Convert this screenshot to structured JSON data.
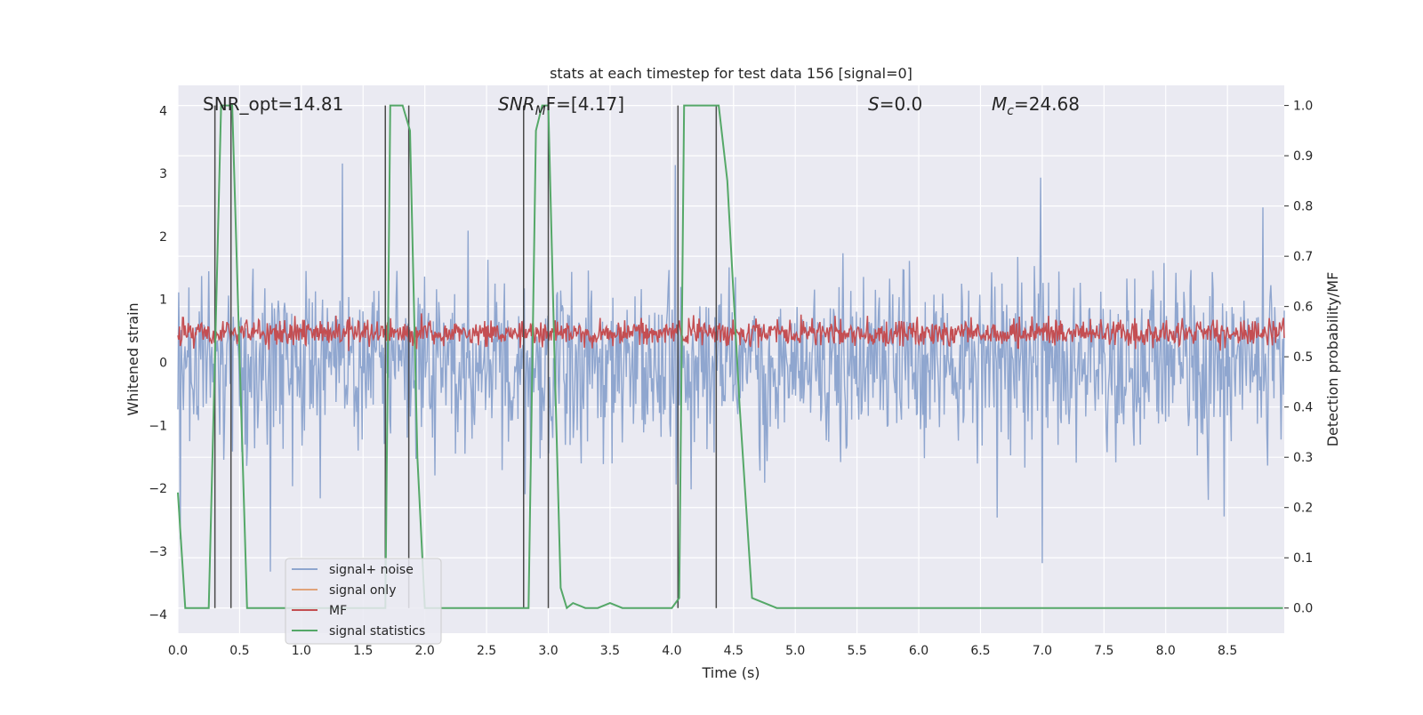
{
  "chart_data": {
    "type": "line",
    "title": "stats at each timestep for test data 156 [signal=0]",
    "xlabel": "Time (s)",
    "ylabel_left": "Whitened strain",
    "ylabel_right": "Detection probability/MF",
    "xlim": [
      0.0,
      8.96
    ],
    "ylim_left": [
      -4.3,
      4.4
    ],
    "ylim_right": [
      -0.05,
      1.04
    ],
    "xticks": [
      "0.0",
      "0.5",
      "1.0",
      "1.5",
      "2.0",
      "2.5",
      "3.0",
      "3.5",
      "4.0",
      "4.5",
      "5.0",
      "5.5",
      "6.0",
      "6.5",
      "7.0",
      "7.5",
      "8.0",
      "8.5"
    ],
    "yticks_left": [
      "4",
      "3",
      "2",
      "1",
      "0",
      "−1",
      "−2",
      "−3",
      "−4"
    ],
    "yticks_right": [
      "1.0",
      "0.9",
      "0.8",
      "0.7",
      "0.6",
      "0.5",
      "0.4",
      "0.3",
      "0.2",
      "0.1",
      "0.0"
    ],
    "grid": true,
    "legend_position": "lower-left",
    "annotations": {
      "snr_opt": "SNR_opt=14.81",
      "snr_mf_main": "SNR",
      "snr_mf_sub": "M",
      "snr_mf_rest": "F=[4.17]",
      "s_main": "S",
      "s_rest": "=0.0",
      "mc_main": "M",
      "mc_sub": "c",
      "mc_rest": "=24.68"
    },
    "series": [
      {
        "name": "signal+ noise",
        "color": "#8fa6cf",
        "axis": "left",
        "description_values": {
          "approx_range": [
            -3.6,
            3.4
          ]
        }
      },
      {
        "name": "signal only",
        "color": "#e0a37a",
        "axis": "left",
        "values": []
      },
      {
        "name": "MF",
        "color": "#c44e52",
        "axis": "right",
        "approx_range": [
          0.5,
          0.6
        ]
      },
      {
        "name": "signal statistics",
        "color": "#55a868",
        "axis": "right",
        "x": [
          0.0,
          0.06,
          0.25,
          0.3,
          0.35,
          0.4,
          0.44,
          0.5,
          0.56,
          1.0,
          1.2,
          1.5,
          1.68,
          1.72,
          1.76,
          1.82,
          1.88,
          1.94,
          2.0,
          2.5,
          2.8,
          2.84,
          2.9,
          2.95,
          3.0,
          3.05,
          3.1,
          3.15,
          3.2,
          3.3,
          3.4,
          3.5,
          3.6,
          3.7,
          3.9,
          4.0,
          4.06,
          4.1,
          4.15,
          4.2,
          4.3,
          4.38,
          4.45,
          4.55,
          4.65,
          4.75,
          4.85,
          5.0,
          5.5,
          6.0,
          7.0,
          8.0,
          8.95
        ],
        "values": [
          0.23,
          0.0,
          0.0,
          0.5,
          1.0,
          1.0,
          1.0,
          0.5,
          0.0,
          0.0,
          0.0,
          0.0,
          0.0,
          1.0,
          1.0,
          1.0,
          0.95,
          0.3,
          0.0,
          0.0,
          0.0,
          0.0,
          0.95,
          1.0,
          1.0,
          0.5,
          0.04,
          0.0,
          0.01,
          0.0,
          0.0,
          0.01,
          0.0,
          0.0,
          0.0,
          0.0,
          0.02,
          1.0,
          1.0,
          1.0,
          1.0,
          1.0,
          0.85,
          0.4,
          0.02,
          0.01,
          0.0,
          0.0,
          0.0,
          0.0,
          0.0,
          0.0,
          0.0
        ]
      }
    ],
    "vertical_markers_x": [
      0.3,
      0.43,
      1.68,
      1.87,
      2.8,
      3.0,
      4.05,
      4.36
    ]
  }
}
